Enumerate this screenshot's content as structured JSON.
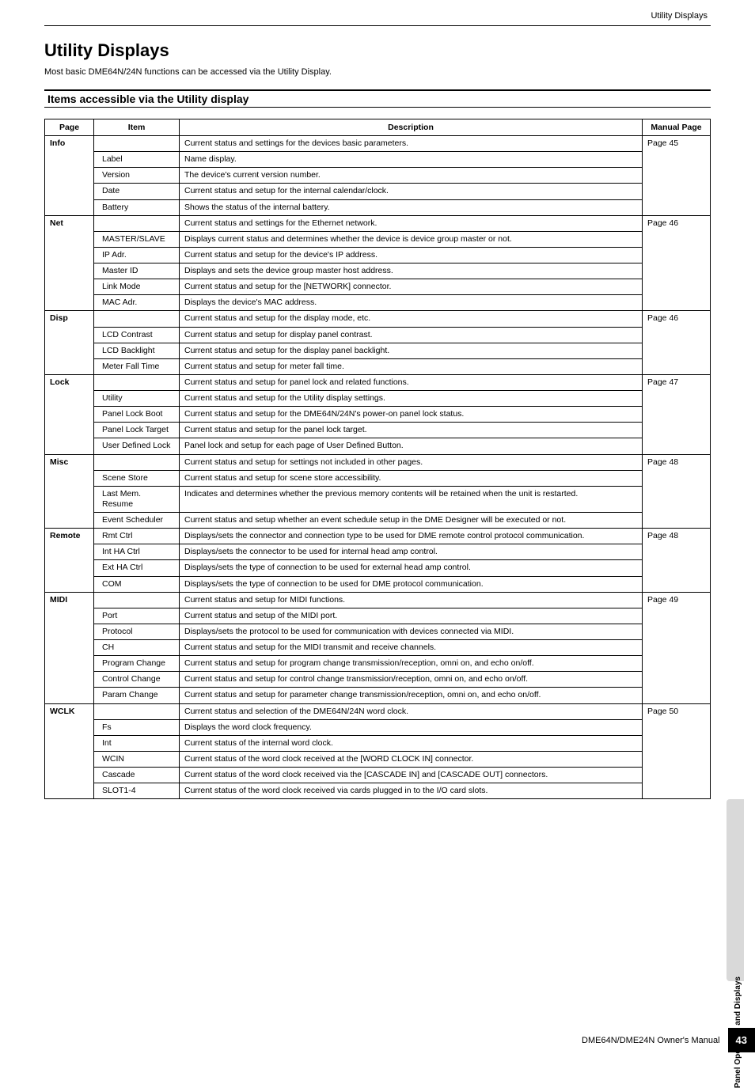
{
  "header_label": "Utility Displays",
  "title": "Utility Displays",
  "intro": "Most basic DME64N/24N functions can be accessed via the Utility Display.",
  "section_heading": "Items accessible via the Utility display",
  "columns": {
    "c0": "Page",
    "c1": "Item",
    "c2": "Description",
    "c3": "Manual Page"
  },
  "groups": [
    {
      "page": "Info",
      "page_desc": "Current status and settings for the devices basic parameters.",
      "mpage": "Page 45",
      "rows": [
        {
          "item": "Label",
          "desc": "Name display."
        },
        {
          "item": "Version",
          "desc": "The device's current version number."
        },
        {
          "item": "Date",
          "desc": "Current status and setup for the internal calendar/clock."
        },
        {
          "item": "Battery",
          "desc": "Shows the status of the internal battery."
        }
      ]
    },
    {
      "page": "Net",
      "page_desc": "Current status and settings for the Ethernet network.",
      "mpage": "Page 46",
      "rows": [
        {
          "item": "MASTER/SLAVE",
          "desc": "Displays current status and determines whether the device is device group master or not."
        },
        {
          "item": "IP Adr.",
          "desc": "Current status and setup for the device's IP address."
        },
        {
          "item": "Master ID",
          "desc": "Displays and sets the device group master host address."
        },
        {
          "item": "Link Mode",
          "desc": "Current status and setup for the [NETWORK] connector."
        },
        {
          "item": "MAC Adr.",
          "desc": "Displays the device's MAC address."
        }
      ]
    },
    {
      "page": "Disp",
      "page_desc": "Current status and setup for the display mode, etc.",
      "mpage": "Page 46",
      "rows": [
        {
          "item": "LCD Contrast",
          "desc": "Current status and setup for display panel contrast."
        },
        {
          "item": "LCD Backlight",
          "desc": "Current status and setup for the display panel backlight."
        },
        {
          "item": "Meter Fall Time",
          "desc": "Current status and setup for meter fall time."
        }
      ]
    },
    {
      "page": "Lock",
      "page_desc": "Current status and setup for panel lock and related functions.",
      "mpage": "Page 47",
      "rows": [
        {
          "item": "Utility",
          "desc": "Current status and setup for the Utility display settings."
        },
        {
          "item": "Panel Lock Boot",
          "desc": "Current status and setup for the DME64N/24N's power-on panel lock status."
        },
        {
          "item": "Panel Lock Target",
          "desc": "Current status and setup for the panel lock target."
        },
        {
          "item": "User Defined Lock",
          "desc": "Panel lock and setup for each page of User Defined Button."
        }
      ]
    },
    {
      "page": "Misc",
      "page_desc": "Current status and setup for settings not included in other pages.",
      "mpage": "Page 48",
      "rows": [
        {
          "item": "Scene Store",
          "desc": "Current status and setup for scene store accessibility."
        },
        {
          "item": "Last Mem. Resume",
          "desc": "Indicates and determines whether the previous memory contents will be retained when the unit is restarted."
        },
        {
          "item": "Event Scheduler",
          "desc": "Current status and setup whether an event schedule setup in the DME Designer will be executed or not."
        }
      ]
    },
    {
      "page": "Remote",
      "page_desc": "",
      "mpage": "Page 48",
      "first_in_first_row": true,
      "rows": [
        {
          "item": "Rmt Ctrl",
          "desc": "Displays/sets the connector and connection type to be used for DME remote control protocol communication."
        },
        {
          "item": "Int HA Ctrl",
          "desc": "Displays/sets the connector to be used for internal head amp control."
        },
        {
          "item": "Ext HA Ctrl",
          "desc": "Displays/sets the type of connection to be used for external head amp control."
        },
        {
          "item": "COM",
          "desc": "Displays/sets the type of connection to be used for DME protocol communication."
        }
      ]
    },
    {
      "page": "MIDI",
      "page_desc": "Current status and setup for MIDI functions.",
      "mpage": "Page 49",
      "rows": [
        {
          "item": "Port",
          "desc": "Current status and setup of the MIDI port."
        },
        {
          "item": "Protocol",
          "desc": "Displays/sets the protocol to be used for communication with devices connected via MIDI."
        },
        {
          "item": "CH",
          "desc": "Current status and setup for the MIDI transmit and receive channels."
        },
        {
          "item": "Program Change",
          "desc": "Current status and setup for program change transmission/reception, omni on, and echo on/off."
        },
        {
          "item": "Control Change",
          "desc": "Current status and setup for control change transmission/reception, omni on, and echo on/off."
        },
        {
          "item": "Param Change",
          "desc": "Current status and setup for parameter change transmission/reception, omni on, and echo on/off."
        }
      ]
    },
    {
      "page": "WCLK",
      "page_desc": "Current status and selection of the DME64N/24N word clock.",
      "mpage": "Page 50",
      "rows": [
        {
          "item": "Fs",
          "desc": "Displays the word clock frequency."
        },
        {
          "item": "Int",
          "desc": "Current status of the internal word clock."
        },
        {
          "item": "WCIN",
          "desc": "Current status of the word clock received at the [WORD CLOCK IN] connector."
        },
        {
          "item": "Cascade",
          "desc": "Current status of the word clock received via the [CASCADE IN] and [CASCADE OUT] connectors."
        },
        {
          "item": "SLOT1-4",
          "desc": "Current status of the word clock received via cards plugged in to the I/O card slots."
        }
      ]
    }
  ],
  "side_tab": "Panel Operation and Displays",
  "footer_text": "DME64N/DME24N Owner's Manual",
  "page_number": "43",
  "colwidths": {
    "c0": "62px",
    "c1": "108px",
    "c2": "auto",
    "c3": "86px"
  }
}
